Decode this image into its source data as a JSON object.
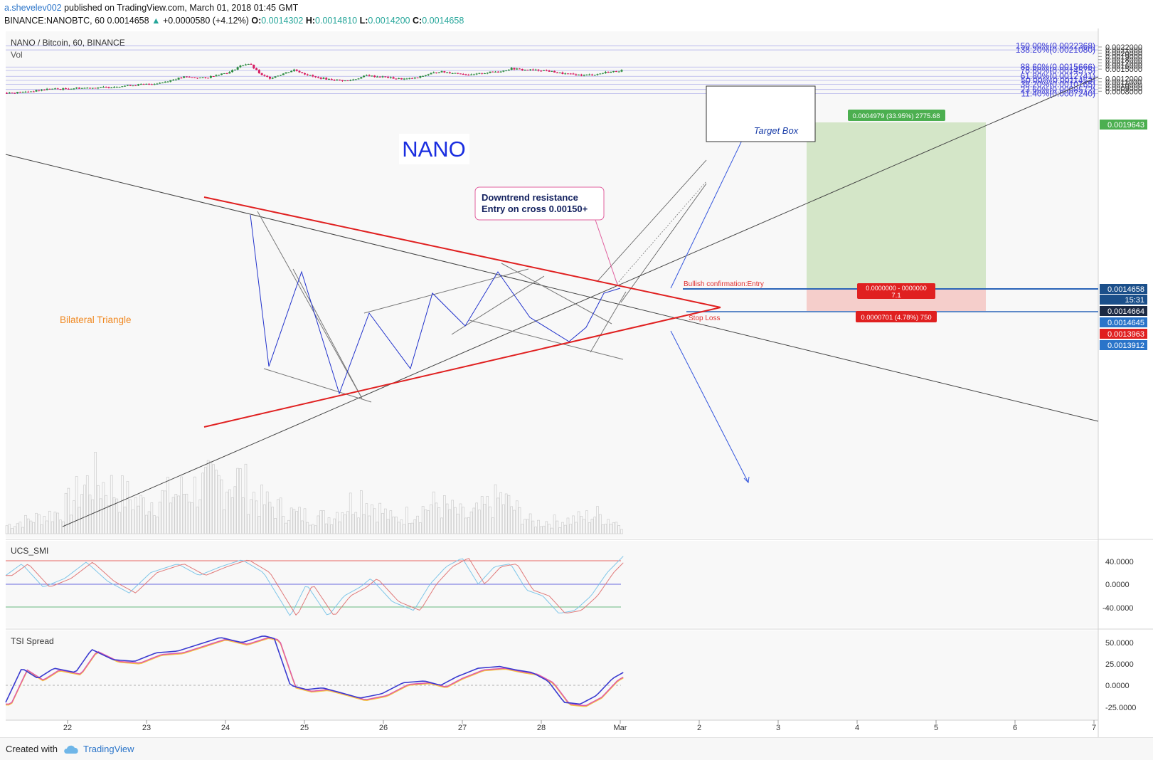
{
  "header": {
    "user": "a.shevelev002",
    "published": "published on TradingView.com, March 01, 2018 01:45 GMT",
    "symbol_line": "BINANCE:NANOBTC, 60",
    "last": "0.0014658",
    "change": "+0.0000580 (+4.12%)",
    "o_label": "O:",
    "o": "0.0014302",
    "h_label": "H:",
    "h": "0.0014810",
    "l_label": "L:",
    "l": "0.0014200",
    "c_label": "C:",
    "c": "0.0014658"
  },
  "legend": {
    "title": "NANO / Bitcoin, 60, BINANCE",
    "vol": "Vol"
  },
  "annotations": {
    "nano": "NANO",
    "bilateral": "Bilateral Triangle",
    "downtrend_1": "Downtrend resistance",
    "downtrend_2": "Entry on cross 0.00150+",
    "target_box": "Target Box",
    "bullish": "Bullish confirmation:Entry",
    "stop_loss": "Stop Loss",
    "target_info": "0.0004979 (33.95%) 2775.68",
    "stop_info": "0.0000701 (4.78%) 750",
    "ratio_top": "0.0000000 - 0000000",
    "ratio": "7.1"
  },
  "price_axis": {
    "ticks": [
      "0.0022000",
      "0.0021000",
      "0.0020000",
      "0.0019000",
      "0.0018000",
      "0.0017000",
      "0.0016000",
      "0.0015000",
      "0.0012000",
      "0.0011000",
      "0.0010000",
      "0.0009000",
      "0.0008000"
    ],
    "tags": [
      {
        "text": "0.0019643",
        "color": "#4caf50"
      },
      {
        "text": "0.0014658",
        "color": "#1b4f8a"
      },
      {
        "text": "15:31",
        "color": "#1b4f8a"
      },
      {
        "text": "0.0014664",
        "color": "#1c2a44"
      },
      {
        "text": "0.0014645",
        "color": "#2a74c9"
      },
      {
        "text": "0.0013963",
        "color": "#e02020"
      },
      {
        "text": "0.0013912",
        "color": "#2a74c9"
      }
    ]
  },
  "fib_levels": [
    {
      "label": "150.00%(0.0022368)",
      "price": 0.0022368
    },
    {
      "label": "138.20%(0.0021080)",
      "price": 0.002108
    },
    {
      "label": "88.60%(0.0015666)",
      "price": 0.0015666
    },
    {
      "label": "78.60%(0.0014575)",
      "price": 0.0014575
    },
    {
      "label": "61.80%(0.0012741)",
      "price": 0.0012741
    },
    {
      "label": "50.00%(0.0011453)",
      "price": 0.0011453
    },
    {
      "label": "38.20%(0.0010165)",
      "price": 0.0010165
    },
    {
      "label": "23.60%(0.0008572)",
      "price": 0.0008572
    },
    {
      "label": "11.40%(0.0007240)",
      "price": 0.000724
    }
  ],
  "smi_panel": {
    "title": "UCS_SMI",
    "ticks": [
      "40.0000",
      "0.0000",
      "-40.0000"
    ]
  },
  "tsi_panel": {
    "title": "TSI Spread",
    "ticks": [
      "50.0000",
      "25.0000",
      "0.0000",
      "-25.0000"
    ]
  },
  "x_axis": {
    "labels": [
      "22",
      "23",
      "24",
      "25",
      "26",
      "27",
      "28",
      "Mar",
      "2",
      "3",
      "4",
      "5",
      "6",
      "7"
    ]
  },
  "footer": {
    "created": "Created with",
    "brand": "TradingView"
  },
  "colors": {
    "bull": "#2a8a3e",
    "bear": "#d81b60",
    "trend": "#e02020",
    "fib": "#3b3bd6",
    "arrow": "#3355dd"
  },
  "chart_data": {
    "type": "candlestick",
    "title": "NANO / Bitcoin, 60, BINANCE",
    "timeframe": "60",
    "x_labels": [
      "22",
      "23",
      "24",
      "25",
      "26",
      "27",
      "28",
      "Mar",
      "2",
      "3",
      "4",
      "5",
      "6",
      "7"
    ],
    "ylim": [
      0.00072,
      0.00229
    ],
    "last_price": 0.0014658,
    "price_path": [
      [
        0.0,
        0.00075
      ],
      [
        0.3,
        0.00077
      ],
      [
        0.6,
        0.00083
      ],
      [
        0.8,
        0.00088
      ],
      [
        1.0,
        0.00087
      ],
      [
        1.3,
        0.0009
      ],
      [
        1.6,
        0.00091
      ],
      [
        1.9,
        0.00093
      ],
      [
        2.1,
        0.00096
      ],
      [
        2.4,
        0.001
      ],
      [
        2.75,
        0.00104
      ],
      [
        2.9,
        0.00108
      ],
      [
        3.05,
        0.00115
      ],
      [
        3.3,
        0.00125
      ],
      [
        3.7,
        0.00122
      ],
      [
        3.95,
        0.00134
      ],
      [
        4.15,
        0.0014
      ],
      [
        4.3,
        0.00156
      ],
      [
        4.42,
        0.00165
      ],
      [
        4.52,
        0.00167
      ],
      [
        4.62,
        0.0015
      ],
      [
        4.75,
        0.0013
      ],
      [
        4.9,
        0.00122
      ],
      [
        5.1,
        0.00133
      ],
      [
        5.35,
        0.00148
      ],
      [
        5.55,
        0.00135
      ],
      [
        5.75,
        0.00124
      ],
      [
        6.0,
        0.00118
      ],
      [
        6.25,
        0.00114
      ],
      [
        6.35,
        0.00113
      ],
      [
        6.5,
        0.00119
      ],
      [
        6.7,
        0.0013
      ],
      [
        6.85,
        0.00127
      ],
      [
        7.05,
        0.00125
      ],
      [
        7.25,
        0.0012
      ],
      [
        7.45,
        0.00119
      ],
      [
        7.65,
        0.00123
      ],
      [
        7.85,
        0.00134
      ],
      [
        8.05,
        0.00142
      ],
      [
        8.25,
        0.00139
      ],
      [
        8.45,
        0.00136
      ],
      [
        8.65,
        0.00131
      ],
      [
        8.85,
        0.00137
      ],
      [
        9.05,
        0.00141
      ],
      [
        9.25,
        0.00145
      ],
      [
        9.4,
        0.00152
      ],
      [
        9.6,
        0.00148
      ],
      [
        9.8,
        0.00147
      ],
      [
        10.0,
        0.00146
      ],
      [
        10.2,
        0.00141
      ],
      [
        10.35,
        0.00136
      ],
      [
        10.55,
        0.00133
      ],
      [
        10.7,
        0.00131
      ],
      [
        10.85,
        0.00132
      ],
      [
        11.0,
        0.00134
      ],
      [
        11.15,
        0.0014
      ],
      [
        11.3,
        0.00142
      ],
      [
        11.5,
        0.00147
      ]
    ],
    "volume_path": [
      [
        0.0,
        0.15
      ],
      [
        1.0,
        0.4
      ],
      [
        1.6,
        1.0
      ],
      [
        2.5,
        0.55
      ],
      [
        3.2,
        0.75
      ],
      [
        3.8,
        0.9
      ],
      [
        4.3,
        1.0
      ],
      [
        4.7,
        0.6
      ],
      [
        5.4,
        0.35
      ],
      [
        6.0,
        0.3
      ],
      [
        6.6,
        0.7
      ],
      [
        7.2,
        0.25
      ],
      [
        8.0,
        0.55
      ],
      [
        8.6,
        0.3
      ],
      [
        9.2,
        0.65
      ],
      [
        9.8,
        0.2
      ],
      [
        10.5,
        0.25
      ],
      [
        11.0,
        0.35
      ],
      [
        11.5,
        0.15
      ]
    ],
    "smi_path": [
      [
        0.0,
        15
      ],
      [
        0.3,
        35
      ],
      [
        0.7,
        -5
      ],
      [
        1.1,
        10
      ],
      [
        1.5,
        38
      ],
      [
        1.9,
        5
      ],
      [
        2.3,
        -15
      ],
      [
        2.7,
        20
      ],
      [
        3.2,
        35
      ],
      [
        3.6,
        15
      ],
      [
        4.0,
        30
      ],
      [
        4.4,
        42
      ],
      [
        4.8,
        20
      ],
      [
        5.3,
        -55
      ],
      [
        5.6,
        0
      ],
      [
        6.0,
        -55
      ],
      [
        6.3,
        -20
      ],
      [
        6.6,
        -5
      ],
      [
        6.8,
        10
      ],
      [
        7.2,
        -30
      ],
      [
        7.6,
        -45
      ],
      [
        7.9,
        0
      ],
      [
        8.2,
        30
      ],
      [
        8.5,
        45
      ],
      [
        8.8,
        0
      ],
      [
        9.1,
        30
      ],
      [
        9.4,
        35
      ],
      [
        9.7,
        -10
      ],
      [
        10.0,
        -20
      ],
      [
        10.3,
        -50
      ],
      [
        10.6,
        -45
      ],
      [
        10.9,
        -20
      ],
      [
        11.2,
        20
      ],
      [
        11.5,
        48
      ]
    ],
    "tsi_path": [
      [
        0.0,
        -20
      ],
      [
        0.3,
        20
      ],
      [
        0.6,
        8
      ],
      [
        0.9,
        20
      ],
      [
        1.3,
        15
      ],
      [
        1.6,
        42
      ],
      [
        2.0,
        30
      ],
      [
        2.4,
        28
      ],
      [
        2.8,
        38
      ],
      [
        3.2,
        40
      ],
      [
        3.6,
        48
      ],
      [
        4.0,
        56
      ],
      [
        4.4,
        50
      ],
      [
        4.8,
        58
      ],
      [
        5.0,
        55
      ],
      [
        5.3,
        0
      ],
      [
        5.6,
        -5
      ],
      [
        5.9,
        -3
      ],
      [
        6.2,
        -8
      ],
      [
        6.6,
        -15
      ],
      [
        7.0,
        -10
      ],
      [
        7.4,
        3
      ],
      [
        7.8,
        5
      ],
      [
        8.1,
        0
      ],
      [
        8.4,
        10
      ],
      [
        8.8,
        20
      ],
      [
        9.2,
        22
      ],
      [
        9.5,
        18
      ],
      [
        9.8,
        15
      ],
      [
        10.1,
        5
      ],
      [
        10.4,
        -20
      ],
      [
        10.7,
        -22
      ],
      [
        11.0,
        -12
      ],
      [
        11.3,
        8
      ],
      [
        11.5,
        15
      ]
    ]
  }
}
